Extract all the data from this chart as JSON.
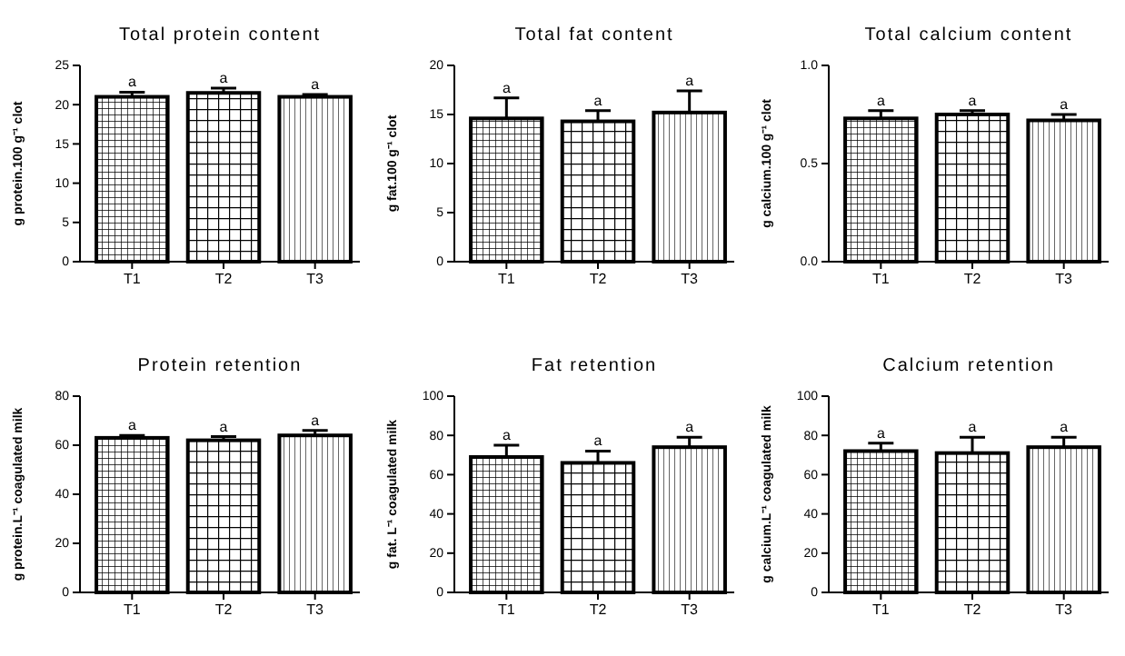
{
  "chart_data": [
    {
      "type": "bar",
      "title": "Total protein content",
      "ylabel": "g protein.100 g⁻¹ clot",
      "categories": [
        "T1",
        "T2",
        "T3"
      ],
      "values": [
        21,
        21.5,
        21
      ],
      "errors": [
        0.6,
        0.6,
        0.3
      ],
      "color": "#000000",
      "ylim": [
        0,
        25
      ],
      "yticks": [
        0,
        5,
        10,
        15,
        20,
        25
      ],
      "annotations": [
        {
          "text": "a",
          "x": "T1",
          "y": 21.6
        },
        {
          "text": "a",
          "x": "T2",
          "y": 22.1
        },
        {
          "text": "a",
          "x": "T3",
          "y": 21.3
        }
      ]
    },
    {
      "type": "bar",
      "title": "Total fat content",
      "ylabel": "g fat.100 g⁻¹ clot",
      "categories": [
        "T1",
        "T2",
        "T3"
      ],
      "values": [
        14.6,
        14.3,
        15.2
      ],
      "errors": [
        2.1,
        1.1,
        2.2
      ],
      "color": "#000000",
      "ylim": [
        0,
        20
      ],
      "yticks": [
        0,
        5,
        10,
        15,
        20
      ],
      "annotations": [
        {
          "text": "a",
          "x": "T1",
          "y": 16.7
        },
        {
          "text": "a",
          "x": "T2",
          "y": 15.4
        },
        {
          "text": "a",
          "x": "T3",
          "y": 17.4
        }
      ]
    },
    {
      "type": "bar",
      "title": "Total calcium content",
      "ylabel": "g calcium.100 g⁻¹ clot",
      "categories": [
        "T1",
        "T2",
        "T3"
      ],
      "values": [
        0.73,
        0.75,
        0.72
      ],
      "errors": [
        0.04,
        0.02,
        0.03
      ],
      "color": "#000000",
      "ylim": [
        0,
        1
      ],
      "yticks": [
        {
          "value": 0,
          "label": "0.0"
        },
        {
          "value": 0.5,
          "label": "0.5"
        },
        {
          "value": 1,
          "label": "1.0"
        }
      ],
      "annotations": [
        {
          "text": "a",
          "x": "T1",
          "y": 0.77
        },
        {
          "text": "a",
          "x": "T2",
          "y": 0.77
        },
        {
          "text": "a",
          "x": "T3",
          "y": 0.75
        }
      ]
    },
    {
      "type": "bar",
      "title": "Protein retention",
      "ylabel": "g protein.L⁻¹ coagulated milk",
      "categories": [
        "T1",
        "T2",
        "T3"
      ],
      "values": [
        63,
        62,
        64
      ],
      "errors": [
        1,
        1.5,
        2
      ],
      "color": "#000000",
      "ylim": [
        0,
        80
      ],
      "yticks": [
        0,
        20,
        40,
        60,
        80
      ],
      "annotations": [
        {
          "text": "a",
          "x": "T1",
          "y": 64
        },
        {
          "text": "a",
          "x": "T2",
          "y": 63.5
        },
        {
          "text": "a",
          "x": "T3",
          "y": 66
        }
      ]
    },
    {
      "type": "bar",
      "title": "Fat retention",
      "ylabel": "g fat. L⁻¹ coagulated milk",
      "categories": [
        "T1",
        "T2",
        "T3"
      ],
      "values": [
        69,
        66,
        74
      ],
      "errors": [
        6,
        6,
        5
      ],
      "color": "#000000",
      "ylim": [
        0,
        100
      ],
      "yticks": [
        0,
        20,
        40,
        60,
        80,
        100
      ],
      "annotations": [
        {
          "text": "a",
          "x": "T1",
          "y": 75
        },
        {
          "text": "a",
          "x": "T2",
          "y": 72
        },
        {
          "text": "a",
          "x": "T3",
          "y": 79
        }
      ]
    },
    {
      "type": "bar",
      "title": "Calcium retention",
      "ylabel": "g calcium.L⁻¹ coagulated milk",
      "categories": [
        "T1",
        "T2",
        "T3"
      ],
      "values": [
        72,
        71,
        74
      ],
      "errors": [
        4,
        8,
        5
      ],
      "color": "#000000",
      "ylim": [
        0,
        100
      ],
      "yticks": [
        0,
        20,
        40,
        60,
        80,
        100
      ],
      "annotations": [
        {
          "text": "a",
          "x": "T1",
          "y": 76
        },
        {
          "text": "a",
          "x": "T2",
          "y": 79
        },
        {
          "text": "a",
          "x": "T3",
          "y": 79
        }
      ]
    }
  ]
}
